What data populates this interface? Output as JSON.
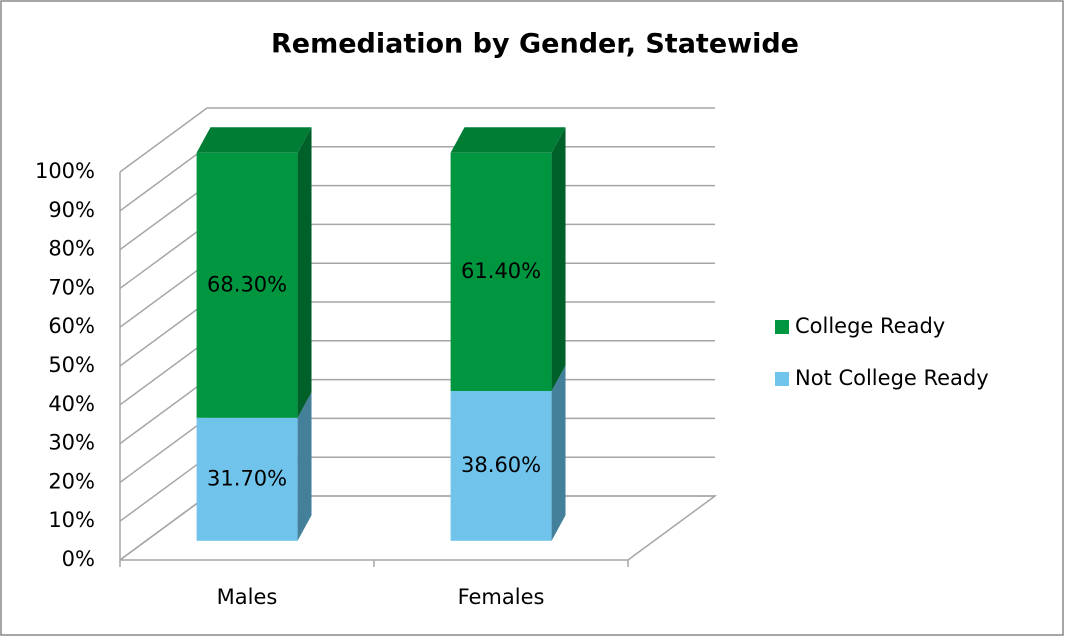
{
  "chart_data": {
    "type": "bar3d_stacked",
    "title": "Remediation by Gender, Statewide",
    "categories": [
      "Males",
      "Females"
    ],
    "series": [
      {
        "name": "Not College Ready",
        "color": "#70c4ec",
        "side_color": "#44809a",
        "values": [
          31.7,
          38.6
        ],
        "value_labels": [
          "31.70%",
          "38.60%"
        ]
      },
      {
        "name": "College Ready",
        "color": "#00963f",
        "side_color": "#00602a",
        "top_color": "#007d35",
        "values": [
          68.3,
          61.4
        ],
        "value_labels": [
          "68.30%",
          "61.40%"
        ]
      }
    ],
    "ylim": [
      0,
      100
    ],
    "yticks": [
      {
        "value": 0,
        "label": "0%"
      },
      {
        "value": 10,
        "label": "10%"
      },
      {
        "value": 20,
        "label": "20%"
      },
      {
        "value": 30,
        "label": "30%"
      },
      {
        "value": 40,
        "label": "40%"
      },
      {
        "value": 50,
        "label": "50%"
      },
      {
        "value": 60,
        "label": "60%"
      },
      {
        "value": 70,
        "label": "70%"
      },
      {
        "value": 80,
        "label": "80%"
      },
      {
        "value": 90,
        "label": "90%"
      },
      {
        "value": 100,
        "label": "100%"
      }
    ],
    "grid": true,
    "legend": "right"
  }
}
